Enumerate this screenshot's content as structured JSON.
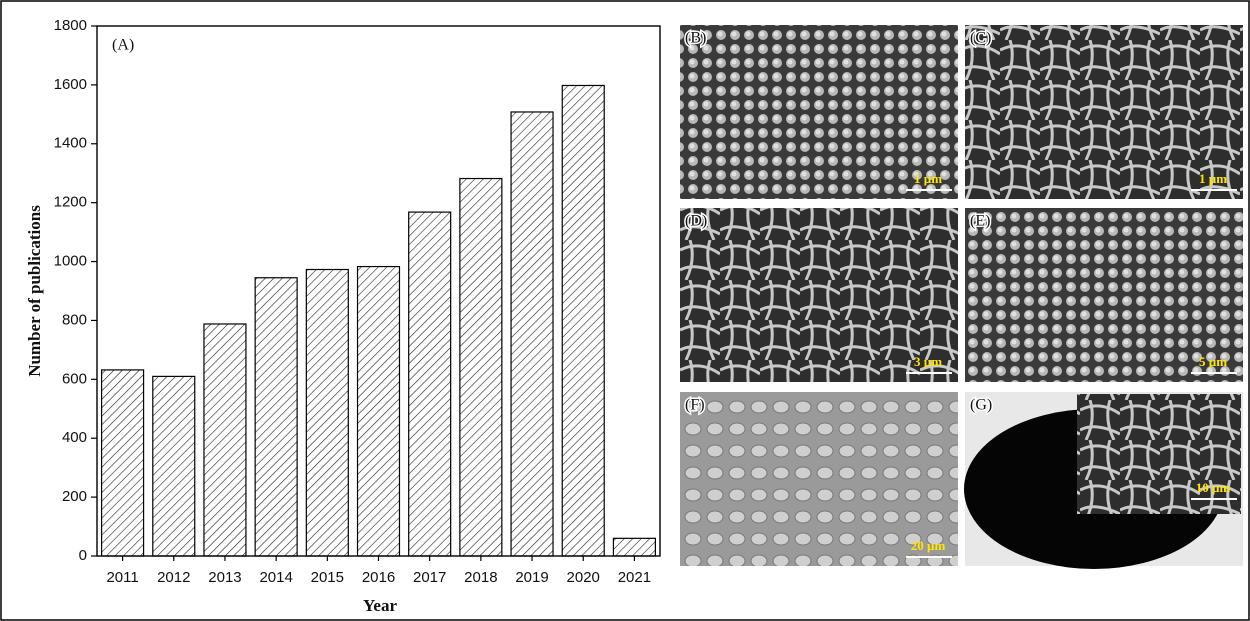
{
  "chart_data": {
    "type": "bar",
    "panel_label": "(A)",
    "x_label": "Year",
    "y_label": "Number of publications",
    "categories": [
      "2011",
      "2012",
      "2013",
      "2014",
      "2015",
      "2016",
      "2017",
      "2018",
      "2019",
      "2020",
      "2021"
    ],
    "values": [
      632,
      610,
      788,
      945,
      973,
      983,
      1168,
      1282,
      1508,
      1598,
      60
    ],
    "color": "#ffffff",
    "hatch": true,
    "ylim": [
      0,
      1800
    ],
    "yticks": [
      0,
      200,
      400,
      600,
      800,
      1000,
      1200,
      1400,
      1600,
      1800
    ]
  },
  "panels": [
    {
      "label": "(B)",
      "scale": "1 µm"
    },
    {
      "label": "(C)",
      "scale": "1 µm"
    },
    {
      "label": "(D)",
      "scale": "3 µm"
    },
    {
      "label": "(E)",
      "scale": "5 µm"
    },
    {
      "label": "(F)",
      "scale": "20 µm"
    },
    {
      "label": "(G)",
      "scale": "10 µm"
    }
  ]
}
